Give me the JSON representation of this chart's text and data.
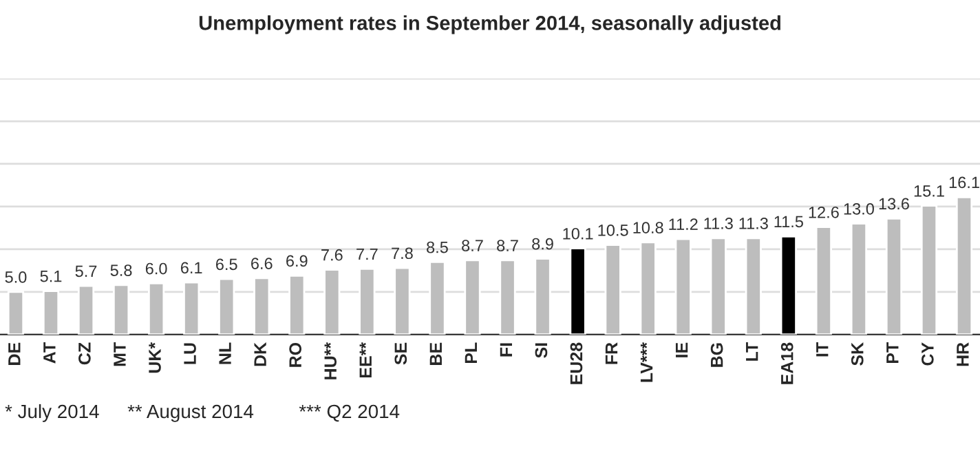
{
  "chart_data": {
    "type": "bar",
    "title": "Unemployment rates in September 2014, seasonally adjusted",
    "categories": [
      "DE",
      "AT",
      "CZ",
      "MT",
      "UK*",
      "LU",
      "NL",
      "DK",
      "RO",
      "HU**",
      "EE**",
      "SE",
      "BE",
      "PL",
      "FI",
      "SI",
      "EU28",
      "FR",
      "LV***",
      "IE",
      "BG",
      "LT",
      "EA18",
      "IT",
      "SK",
      "PT",
      "CY",
      "HR"
    ],
    "values": [
      5.0,
      5.1,
      5.7,
      5.8,
      6.0,
      6.1,
      6.5,
      6.6,
      6.9,
      7.6,
      7.7,
      7.8,
      8.5,
      8.7,
      8.7,
      8.9,
      10.1,
      10.5,
      10.8,
      11.2,
      11.3,
      11.3,
      11.5,
      12.6,
      13.0,
      13.6,
      15.1,
      16.1
    ],
    "colors": [
      "#bdbdbd",
      "#bdbdbd",
      "#bdbdbd",
      "#bdbdbd",
      "#bdbdbd",
      "#bdbdbd",
      "#bdbdbd",
      "#bdbdbd",
      "#bdbdbd",
      "#bdbdbd",
      "#bdbdbd",
      "#bdbdbd",
      "#bdbdbd",
      "#bdbdbd",
      "#bdbdbd",
      "#bdbdbd",
      "#000000",
      "#bdbdbd",
      "#bdbdbd",
      "#bdbdbd",
      "#bdbdbd",
      "#bdbdbd",
      "#000000",
      "#bdbdbd",
      "#bdbdbd",
      "#bdbdbd",
      "#bdbdbd",
      "#bdbdbd"
    ],
    "value_labels": [
      "5.0",
      "5.1",
      "5.7",
      "5.8",
      "6.0",
      "6.1",
      "6.5",
      "6.6",
      "6.9",
      "7.6",
      "7.7",
      "7.8",
      "8.5",
      "8.7",
      "8.7",
      "8.9",
      "10.1",
      "10.5",
      "10.8",
      "11.2",
      "11.3",
      "11.3",
      "11.5",
      "12.6",
      "13.0",
      "13.6",
      "15.1",
      "16.1"
    ],
    "ylim": [
      0,
      30
    ],
    "yticks": [
      {
        "value": 0,
        "label": null
      },
      {
        "value": 5,
        "label": null
      },
      {
        "value": 10,
        "label": null
      },
      {
        "value": 15,
        "label": null
      },
      {
        "value": 20,
        "label": null
      },
      {
        "value": 25,
        "label": null
      },
      {
        "value": 30,
        "label": null
      }
    ],
    "grid": "y",
    "annotations": [
      "* July 2014",
      "** August 2014",
      "*** Q2 2014"
    ]
  }
}
